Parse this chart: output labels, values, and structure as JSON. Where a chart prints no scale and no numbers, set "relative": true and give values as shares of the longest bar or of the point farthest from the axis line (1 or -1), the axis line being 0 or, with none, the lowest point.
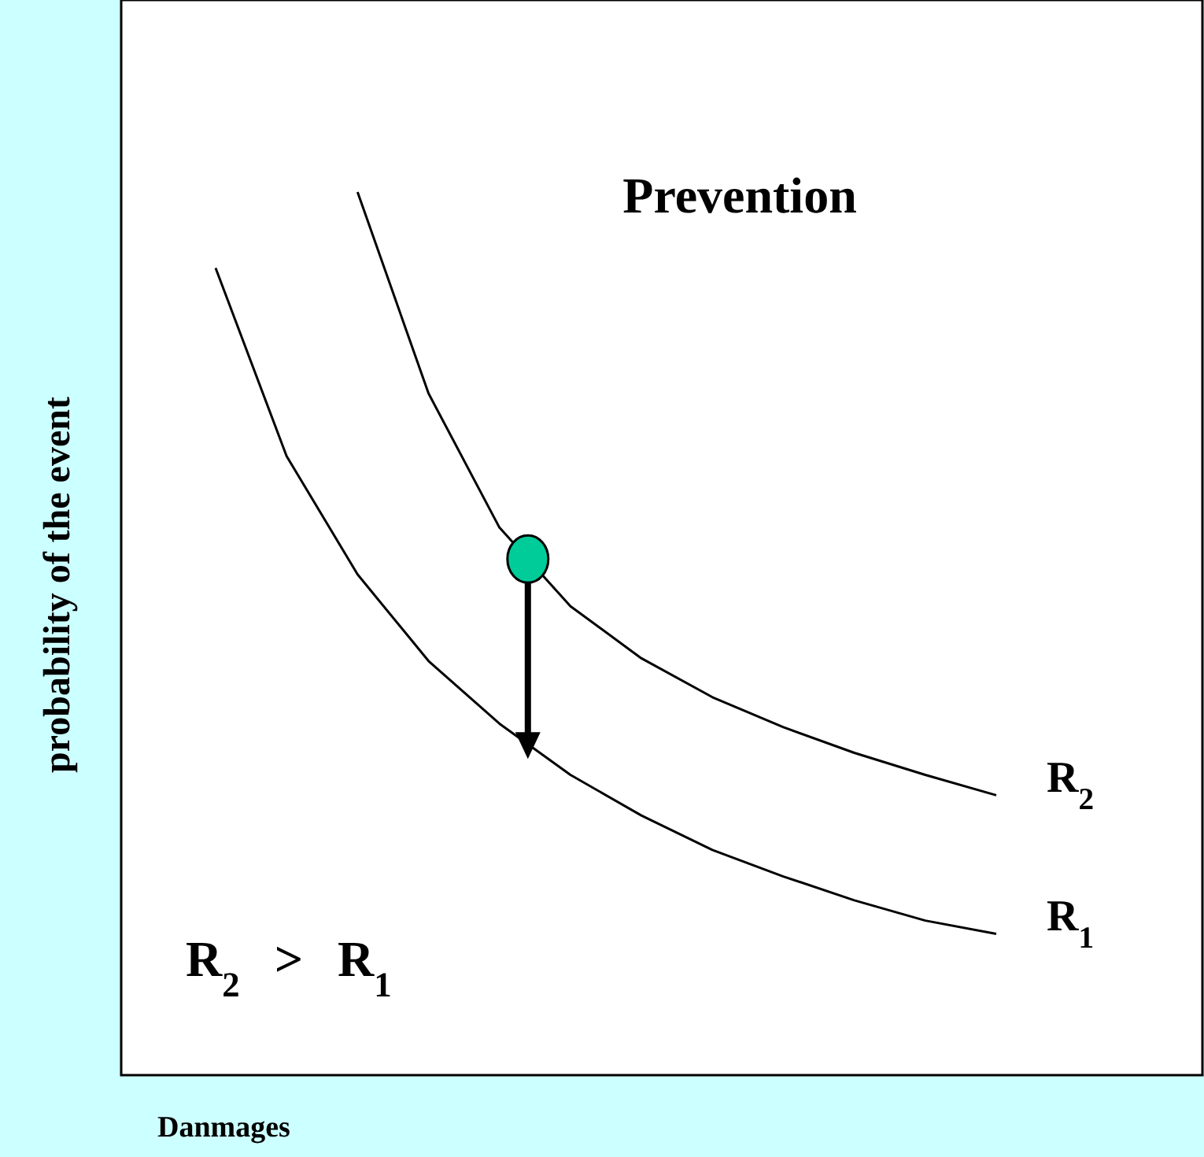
{
  "chart_data": {
    "type": "line",
    "relative": true,
    "xlabel": "Danmages",
    "ylabel": "probability of the event",
    "categories": [
      null,
      null,
      null,
      null,
      null,
      null,
      null,
      null,
      null,
      null,
      null,
      null
    ],
    "series": [
      {
        "name": "R$_{2}$",
        "color": "#000000",
        "values": [
          null,
          null,
          1,
          0.772,
          0.62,
          0.531,
          0.472,
          0.428,
          0.394,
          0.365,
          0.34,
          0.317
        ]
      },
      {
        "name": "R$_{1}$",
        "color": "#000000",
        "values": [
          0.914,
          0.701,
          0.567,
          0.469,
          0.398,
          0.34,
          0.294,
          0.255,
          0.225,
          0.198,
          0.175,
          0.16
        ]
      }
    ],
    "annotations": [
      "Prevention",
      "R$_{2}$ > R$_{1}$"
    ],
    "marker": "none",
    "line_style": "solid"
  }
}
